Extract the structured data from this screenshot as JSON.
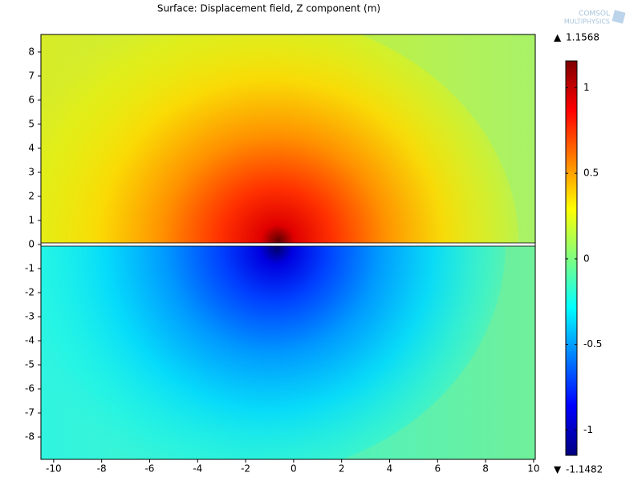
{
  "chart_data": {
    "type": "surface",
    "title": "Surface: Displacement field, Z component (m)",
    "logo": [
      "COMSOL",
      "MULTIPHYSICS"
    ],
    "xlim": [
      -10.53,
      10.07
    ],
    "ylim": [
      -8.93,
      8.73
    ],
    "xticks": [
      -10,
      -8,
      -6,
      -4,
      -2,
      0,
      2,
      4,
      6,
      8,
      10
    ],
    "yticks": [
      -8,
      -7,
      -6,
      -5,
      -4,
      -3,
      -2,
      -1,
      0,
      1,
      2,
      3,
      4,
      5,
      6,
      7,
      8
    ],
    "colorbar": {
      "range": [
        -1.1482,
        1.1568
      ],
      "max": 1.1568,
      "min": -1.1482,
      "ticks": [
        -1,
        -0.5,
        0,
        0.5,
        1
      ],
      "colormap": [
        "#00007f",
        "#0000ff",
        "#007fff",
        "#00ffff",
        "#7fff7f",
        "#ffff00",
        "#ff7f00",
        "#ff0000",
        "#7f0000"
      ]
    }
  }
}
